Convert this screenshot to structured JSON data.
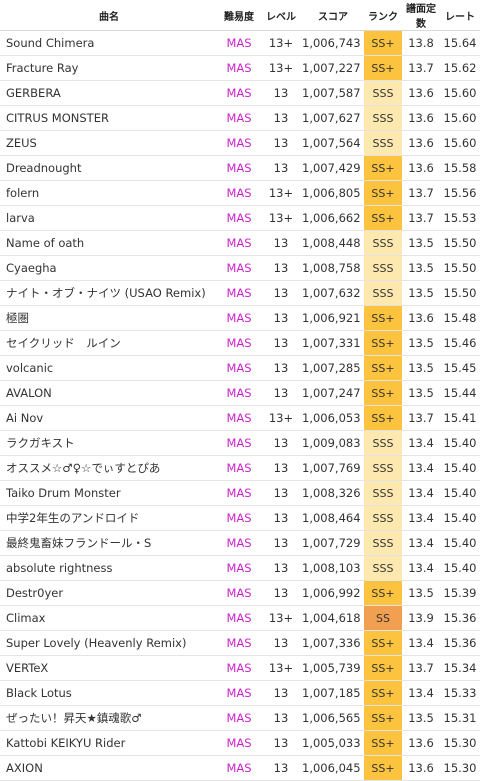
{
  "headers": [
    "曲名",
    "難易度",
    "レベル",
    "スコア",
    "ランク",
    "譜面定数",
    "レート"
  ],
  "colors": {
    "difficulty": "#cc22cc",
    "rank_sss": "#fde9b0",
    "rank_ssp": "#fbc33e",
    "rank_ss": "#f0a050"
  },
  "rows": [
    {
      "song": "Sound Chimera",
      "diff": "MAS",
      "level": "13+",
      "score": "1,006,743",
      "rank": "SS+",
      "const": "13.8",
      "rate": "15.64"
    },
    {
      "song": "Fracture Ray",
      "diff": "MAS",
      "level": "13+",
      "score": "1,007,227",
      "rank": "SS+",
      "const": "13.7",
      "rate": "15.62"
    },
    {
      "song": "GERBERA",
      "diff": "MAS",
      "level": "13",
      "score": "1,007,587",
      "rank": "SSS",
      "const": "13.6",
      "rate": "15.60"
    },
    {
      "song": "CITRUS MONSTER",
      "diff": "MAS",
      "level": "13",
      "score": "1,007,627",
      "rank": "SSS",
      "const": "13.6",
      "rate": "15.60"
    },
    {
      "song": "ZEUS",
      "diff": "MAS",
      "level": "13",
      "score": "1,007,564",
      "rank": "SSS",
      "const": "13.6",
      "rate": "15.60"
    },
    {
      "song": "Dreadnought",
      "diff": "MAS",
      "level": "13",
      "score": "1,007,429",
      "rank": "SS+",
      "const": "13.6",
      "rate": "15.58"
    },
    {
      "song": "folern",
      "diff": "MAS",
      "level": "13+",
      "score": "1,006,805",
      "rank": "SS+",
      "const": "13.7",
      "rate": "15.56"
    },
    {
      "song": "larva",
      "diff": "MAS",
      "level": "13+",
      "score": "1,006,662",
      "rank": "SS+",
      "const": "13.7",
      "rate": "15.53"
    },
    {
      "song": "Name of oath",
      "diff": "MAS",
      "level": "13",
      "score": "1,008,448",
      "rank": "SSS",
      "const": "13.5",
      "rate": "15.50"
    },
    {
      "song": "Cyaegha",
      "diff": "MAS",
      "level": "13",
      "score": "1,008,758",
      "rank": "SSS",
      "const": "13.5",
      "rate": "15.50"
    },
    {
      "song": "ナイト・オブ・ナイツ (USAO Remix)",
      "diff": "MAS",
      "level": "13",
      "score": "1,007,632",
      "rank": "SSS",
      "const": "13.5",
      "rate": "15.50"
    },
    {
      "song": "極圏",
      "diff": "MAS",
      "level": "13",
      "score": "1,006,921",
      "rank": "SS+",
      "const": "13.6",
      "rate": "15.48"
    },
    {
      "song": "セイクリッド　ルイン",
      "diff": "MAS",
      "level": "13",
      "score": "1,007,331",
      "rank": "SS+",
      "const": "13.5",
      "rate": "15.46"
    },
    {
      "song": "volcanic",
      "diff": "MAS",
      "level": "13",
      "score": "1,007,285",
      "rank": "SS+",
      "const": "13.5",
      "rate": "15.45"
    },
    {
      "song": "AVALON",
      "diff": "MAS",
      "level": "13",
      "score": "1,007,247",
      "rank": "SS+",
      "const": "13.5",
      "rate": "15.44"
    },
    {
      "song": "Ai Nov",
      "diff": "MAS",
      "level": "13+",
      "score": "1,006,053",
      "rank": "SS+",
      "const": "13.7",
      "rate": "15.41"
    },
    {
      "song": "ラクガキスト",
      "diff": "MAS",
      "level": "13",
      "score": "1,009,083",
      "rank": "SSS",
      "const": "13.4",
      "rate": "15.40"
    },
    {
      "song": "オススメ☆♂♀☆でぃすとぴあ",
      "diff": "MAS",
      "level": "13",
      "score": "1,007,769",
      "rank": "SSS",
      "const": "13.4",
      "rate": "15.40"
    },
    {
      "song": "Taiko Drum Monster",
      "diff": "MAS",
      "level": "13",
      "score": "1,008,326",
      "rank": "SSS",
      "const": "13.4",
      "rate": "15.40"
    },
    {
      "song": "中学2年生のアンドロイド",
      "diff": "MAS",
      "level": "13",
      "score": "1,008,464",
      "rank": "SSS",
      "const": "13.4",
      "rate": "15.40"
    },
    {
      "song": "最終鬼畜妹フランドール・S",
      "diff": "MAS",
      "level": "13",
      "score": "1,007,729",
      "rank": "SSS",
      "const": "13.4",
      "rate": "15.40"
    },
    {
      "song": "absolute rightness",
      "diff": "MAS",
      "level": "13",
      "score": "1,008,103",
      "rank": "SSS",
      "const": "13.4",
      "rate": "15.40"
    },
    {
      "song": "Destr0yer",
      "diff": "MAS",
      "level": "13",
      "score": "1,006,992",
      "rank": "SS+",
      "const": "13.5",
      "rate": "15.39"
    },
    {
      "song": "Climax",
      "diff": "MAS",
      "level": "13+",
      "score": "1,004,618",
      "rank": "SS",
      "const": "13.9",
      "rate": "15.36"
    },
    {
      "song": "Super Lovely (Heavenly Remix)",
      "diff": "MAS",
      "level": "13",
      "score": "1,007,336",
      "rank": "SS+",
      "const": "13.4",
      "rate": "15.36"
    },
    {
      "song": "VERTeX",
      "diff": "MAS",
      "level": "13+",
      "score": "1,005,739",
      "rank": "SS+",
      "const": "13.7",
      "rate": "15.34"
    },
    {
      "song": "Black Lotus",
      "diff": "MAS",
      "level": "13",
      "score": "1,007,185",
      "rank": "SS+",
      "const": "13.4",
      "rate": "15.33"
    },
    {
      "song": "ぜったい！昇天★鎮魂歌♂",
      "diff": "MAS",
      "level": "13",
      "score": "1,006,565",
      "rank": "SS+",
      "const": "13.5",
      "rate": "15.31"
    },
    {
      "song": "Kattobi KEIKYU Rider",
      "diff": "MAS",
      "level": "13",
      "score": "1,005,033",
      "rank": "SS+",
      "const": "13.6",
      "rate": "15.30"
    },
    {
      "song": "AXION",
      "diff": "MAS",
      "level": "13",
      "score": "1,006,045",
      "rank": "SS+",
      "const": "13.6",
      "rate": "15.30"
    }
  ]
}
